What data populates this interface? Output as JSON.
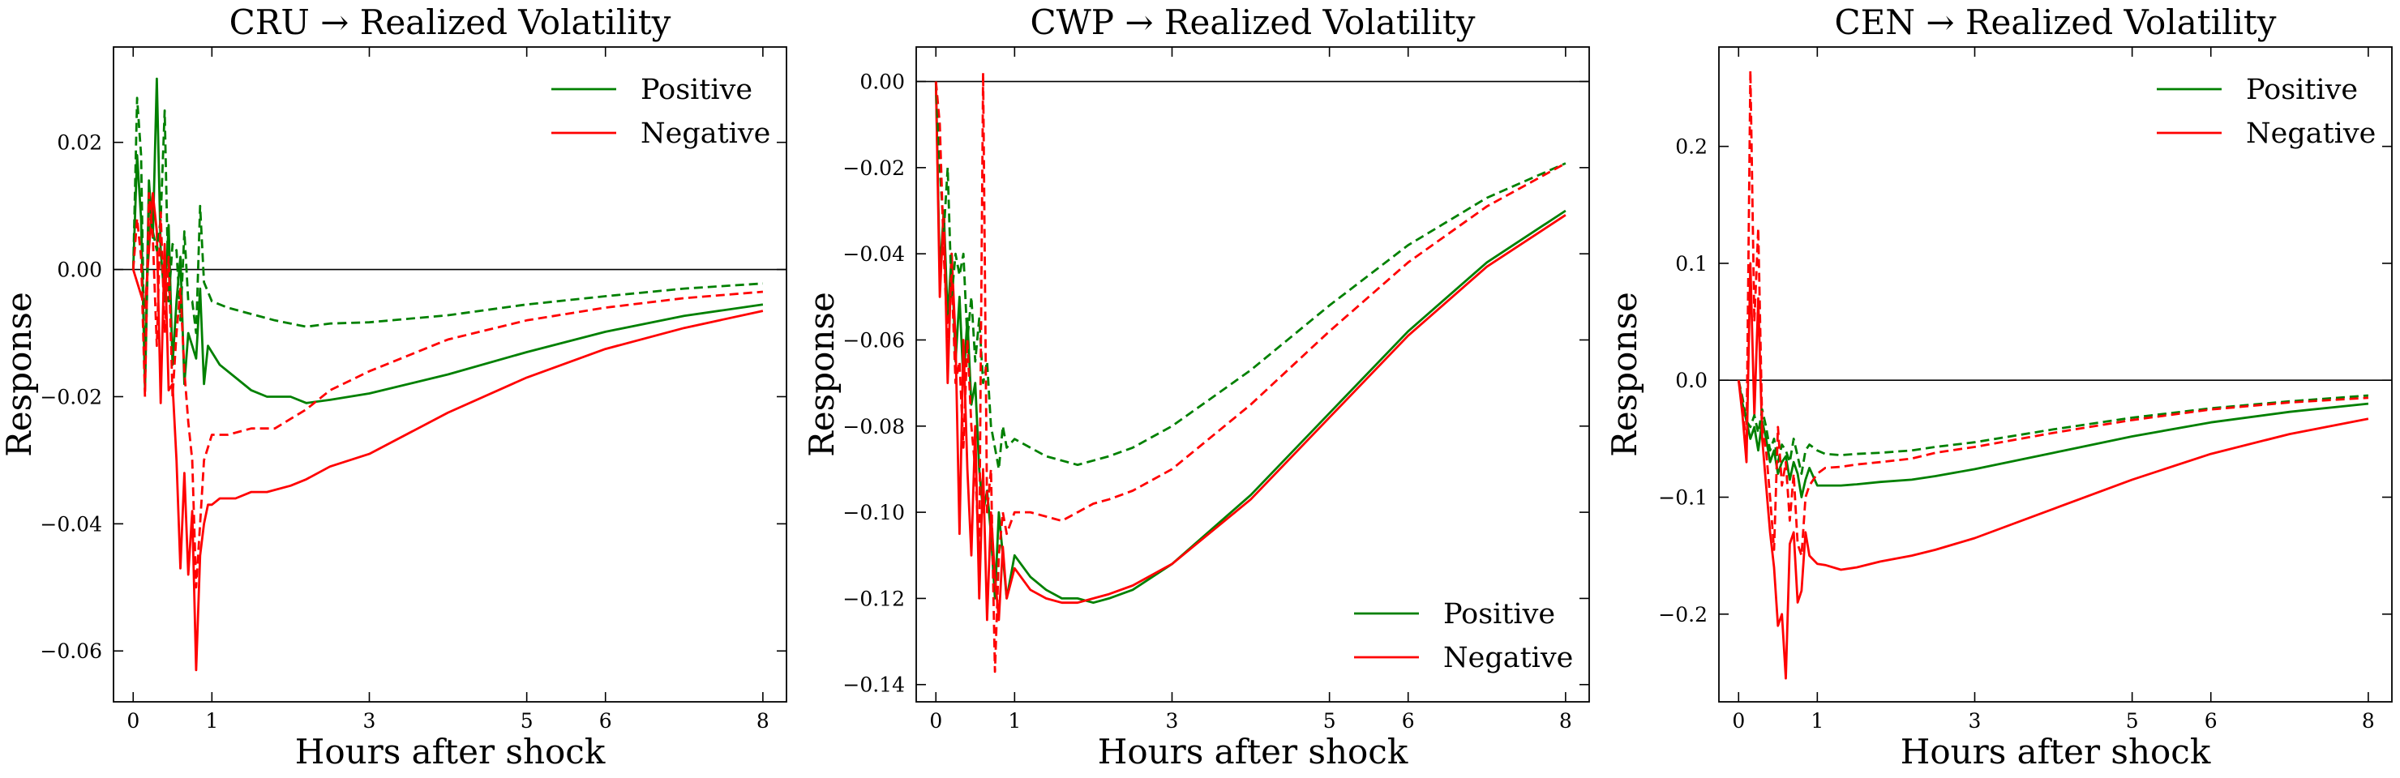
{
  "colors": {
    "positive": "#008000",
    "negative": "#ff0000",
    "zero_line": "#000000",
    "axis": "#000000"
  },
  "legend_labels": {
    "positive": "Positive",
    "negative": "Negative"
  },
  "chart_data": [
    {
      "type": "line",
      "title": "CRU → Realized Volatility",
      "xlabel": "Hours after shock",
      "ylabel": "Response",
      "xlim": [
        -0.25,
        8.3
      ],
      "ylim": [
        -0.068,
        0.035
      ],
      "xticks": [
        0,
        1,
        3,
        5,
        6,
        8
      ],
      "yticks": [
        -0.06,
        -0.04,
        -0.02,
        0.0,
        0.02
      ],
      "ytick_labels": [
        "−0.06",
        "−0.04",
        "−0.02",
        "0.00",
        "0.02"
      ],
      "legend_position": "upper right",
      "series": [
        {
          "name": "Positive",
          "style": "solid",
          "x": [
            0,
            0.05,
            0.1,
            0.15,
            0.2,
            0.25,
            0.3,
            0.35,
            0.4,
            0.45,
            0.5,
            0.55,
            0.6,
            0.65,
            0.7,
            0.75,
            0.8,
            0.85,
            0.9,
            0.95,
            1.0,
            1.1,
            1.3,
            1.5,
            1.7,
            2.0,
            2.2,
            2.5,
            3.0,
            4.0,
            5.0,
            6.0,
            7.0,
            8.0
          ],
          "y": [
            0.0,
            0.018,
            0.008,
            -0.018,
            0.014,
            0.005,
            0.03,
            0.003,
            -0.005,
            0.007,
            -0.015,
            -0.005,
            0.002,
            -0.018,
            -0.01,
            -0.012,
            -0.014,
            -0.003,
            -0.018,
            -0.012,
            -0.013,
            -0.015,
            -0.017,
            -0.019,
            -0.02,
            -0.02,
            -0.021,
            -0.0205,
            -0.0195,
            -0.0165,
            -0.013,
            -0.0098,
            -0.0073,
            -0.0055
          ]
        },
        {
          "name": "Negative",
          "style": "solid",
          "x": [
            0,
            0.1,
            0.15,
            0.2,
            0.25,
            0.3,
            0.35,
            0.4,
            0.45,
            0.5,
            0.55,
            0.6,
            0.65,
            0.7,
            0.75,
            0.8,
            0.85,
            0.9,
            0.95,
            1.0,
            1.1,
            1.3,
            1.5,
            1.7,
            2.0,
            2.2,
            2.5,
            3.0,
            4.0,
            5.0,
            6.0,
            7.0,
            8.0
          ],
          "y": [
            0.0,
            -0.004,
            -0.006,
            0.003,
            0.012,
            0.006,
            -0.021,
            0.004,
            -0.019,
            -0.018,
            -0.03,
            -0.047,
            -0.032,
            -0.048,
            -0.038,
            -0.063,
            -0.045,
            -0.04,
            -0.037,
            -0.037,
            -0.036,
            -0.036,
            -0.035,
            -0.035,
            -0.034,
            -0.033,
            -0.031,
            -0.029,
            -0.0225,
            -0.017,
            -0.0125,
            -0.0092,
            -0.0065
          ]
        },
        {
          "name": "Positive",
          "style": "dashed",
          "x": [
            0,
            0.05,
            0.1,
            0.15,
            0.2,
            0.25,
            0.3,
            0.35,
            0.4,
            0.45,
            0.5,
            0.55,
            0.6,
            0.65,
            0.7,
            0.75,
            0.8,
            0.85,
            0.9,
            1.0,
            1.2,
            1.5,
            1.8,
            2.2,
            2.5,
            3.0,
            4.0,
            5.0,
            6.0,
            7.0,
            8.0
          ],
          "y": [
            0.0,
            0.027,
            0.018,
            -0.019,
            0.01,
            0.006,
            0.003,
            0.008,
            0.025,
            -0.005,
            0.004,
            0.003,
            -0.008,
            0.006,
            -0.005,
            -0.005,
            -0.01,
            0.01,
            -0.002,
            -0.005,
            -0.006,
            -0.007,
            -0.008,
            -0.009,
            -0.0085,
            -0.0083,
            -0.0072,
            -0.0055,
            -0.0042,
            -0.003,
            -0.0022
          ]
        },
        {
          "name": "Negative",
          "style": "dashed",
          "x": [
            0,
            0.05,
            0.1,
            0.15,
            0.2,
            0.25,
            0.3,
            0.35,
            0.4,
            0.45,
            0.5,
            0.55,
            0.6,
            0.65,
            0.7,
            0.75,
            0.8,
            0.85,
            0.9,
            1.0,
            1.2,
            1.5,
            1.8,
            2.2,
            2.5,
            3.0,
            4.0,
            5.0,
            6.0,
            7.0,
            8.0
          ],
          "y": [
            0.0,
            0.008,
            0.002,
            -0.02,
            0.012,
            0.005,
            -0.012,
            0.009,
            -0.01,
            0.002,
            -0.02,
            -0.01,
            -0.003,
            -0.016,
            -0.024,
            -0.03,
            -0.05,
            -0.04,
            -0.03,
            -0.026,
            -0.026,
            -0.025,
            -0.025,
            -0.022,
            -0.019,
            -0.016,
            -0.011,
            -0.008,
            -0.006,
            -0.0045,
            -0.0035
          ]
        }
      ]
    },
    {
      "type": "line",
      "title": "CWP → Realized Volatility",
      "xlabel": "Hours after shock",
      "ylabel": "Response",
      "xlim": [
        -0.25,
        8.3
      ],
      "ylim": [
        -0.144,
        0.008
      ],
      "xticks": [
        0,
        1,
        3,
        5,
        6,
        8
      ],
      "yticks": [
        -0.14,
        -0.12,
        -0.1,
        -0.08,
        -0.06,
        -0.04,
        -0.02,
        0.0
      ],
      "ytick_labels": [
        "−0.14",
        "−0.12",
        "−0.10",
        "−0.08",
        "−0.06",
        "−0.04",
        "−0.02",
        "0.00"
      ],
      "legend_position": "lower right",
      "series": [
        {
          "name": "Positive",
          "style": "solid",
          "x": [
            0,
            0.05,
            0.1,
            0.15,
            0.2,
            0.25,
            0.3,
            0.35,
            0.4,
            0.45,
            0.5,
            0.55,
            0.6,
            0.65,
            0.7,
            0.75,
            0.8,
            0.85,
            0.9,
            1.0,
            1.2,
            1.4,
            1.6,
            1.8,
            2.0,
            2.2,
            2.5,
            3.0,
            4.0,
            5.0,
            6.0,
            7.0,
            8.0
          ],
          "y": [
            0.0,
            -0.045,
            -0.03,
            -0.055,
            -0.04,
            -0.065,
            -0.05,
            -0.07,
            -0.055,
            -0.075,
            -0.07,
            -0.09,
            -0.1,
            -0.095,
            -0.105,
            -0.12,
            -0.1,
            -0.11,
            -0.12,
            -0.11,
            -0.115,
            -0.118,
            -0.12,
            -0.12,
            -0.121,
            -0.12,
            -0.118,
            -0.112,
            -0.096,
            -0.077,
            -0.058,
            -0.042,
            -0.03
          ]
        },
        {
          "name": "Negative",
          "style": "solid",
          "x": [
            0,
            0.05,
            0.1,
            0.15,
            0.2,
            0.25,
            0.3,
            0.35,
            0.4,
            0.45,
            0.5,
            0.55,
            0.6,
            0.65,
            0.7,
            0.75,
            0.8,
            0.85,
            0.9,
            1.0,
            1.2,
            1.4,
            1.6,
            1.8,
            2.0,
            2.2,
            2.5,
            3.0,
            4.0,
            5.0,
            6.0,
            7.0,
            8.0
          ],
          "y": [
            0.0,
            -0.05,
            -0.03,
            -0.07,
            -0.04,
            -0.06,
            -0.105,
            -0.06,
            -0.09,
            -0.11,
            -0.08,
            -0.12,
            -0.09,
            -0.125,
            -0.1,
            -0.115,
            -0.125,
            -0.108,
            -0.12,
            -0.113,
            -0.118,
            -0.12,
            -0.121,
            -0.121,
            -0.12,
            -0.119,
            -0.117,
            -0.112,
            -0.097,
            -0.078,
            -0.059,
            -0.043,
            -0.031
          ]
        },
        {
          "name": "Positive",
          "style": "dashed",
          "x": [
            0,
            0.05,
            0.1,
            0.15,
            0.2,
            0.25,
            0.3,
            0.35,
            0.4,
            0.45,
            0.5,
            0.55,
            0.6,
            0.65,
            0.7,
            0.75,
            0.8,
            0.85,
            0.9,
            1.0,
            1.2,
            1.4,
            1.6,
            1.8,
            2.0,
            2.2,
            2.5,
            3.0,
            4.0,
            5.0,
            6.0,
            7.0,
            8.0
          ],
          "y": [
            0.0,
            -0.02,
            -0.035,
            -0.02,
            -0.05,
            -0.04,
            -0.045,
            -0.04,
            -0.06,
            -0.05,
            -0.065,
            -0.055,
            -0.07,
            -0.065,
            -0.08,
            -0.085,
            -0.09,
            -0.08,
            -0.085,
            -0.083,
            -0.085,
            -0.087,
            -0.088,
            -0.089,
            -0.088,
            -0.087,
            -0.085,
            -0.08,
            -0.067,
            -0.052,
            -0.038,
            -0.027,
            -0.019
          ]
        },
        {
          "name": "Negative",
          "style": "dashed",
          "x": [
            0,
            0.05,
            0.1,
            0.15,
            0.2,
            0.25,
            0.3,
            0.35,
            0.4,
            0.45,
            0.5,
            0.55,
            0.6,
            0.65,
            0.7,
            0.75,
            0.8,
            0.85,
            0.9,
            1.0,
            1.2,
            1.4,
            1.6,
            1.8,
            2.0,
            2.2,
            2.5,
            3.0,
            4.0,
            5.0,
            6.0,
            7.0,
            8.0
          ],
          "y": [
            0.0,
            -0.01,
            -0.04,
            -0.06,
            -0.045,
            -0.07,
            -0.065,
            -0.085,
            -0.06,
            -0.08,
            -0.09,
            -0.11,
            0.002,
            -0.1,
            -0.09,
            -0.137,
            -0.11,
            -0.1,
            -0.105,
            -0.1,
            -0.1,
            -0.101,
            -0.102,
            -0.1,
            -0.098,
            -0.097,
            -0.095,
            -0.09,
            -0.075,
            -0.058,
            -0.042,
            -0.029,
            -0.019
          ]
        }
      ]
    },
    {
      "type": "line",
      "title": "CEN → Realized Volatility",
      "xlabel": "Hours after shock",
      "ylabel": "Response",
      "xlim": [
        -0.25,
        8.3
      ],
      "ylim": [
        -0.275,
        0.285
      ],
      "xticks": [
        0,
        1,
        3,
        5,
        6,
        8
      ],
      "yticks": [
        -0.2,
        -0.1,
        0.0,
        0.1,
        0.2
      ],
      "ytick_labels": [
        "−0.2",
        "−0.1",
        "0.0",
        "0.1",
        "0.2"
      ],
      "legend_position": "upper right",
      "series": [
        {
          "name": "Positive",
          "style": "solid",
          "x": [
            0,
            0.05,
            0.1,
            0.15,
            0.2,
            0.25,
            0.3,
            0.35,
            0.4,
            0.45,
            0.5,
            0.55,
            0.6,
            0.65,
            0.7,
            0.75,
            0.8,
            0.85,
            0.9,
            1.0,
            1.1,
            1.3,
            1.5,
            1.8,
            2.2,
            2.5,
            3.0,
            4.0,
            5.0,
            6.0,
            7.0,
            8.0
          ],
          "y": [
            0.0,
            -0.02,
            -0.035,
            -0.05,
            -0.04,
            -0.06,
            -0.035,
            -0.05,
            -0.07,
            -0.06,
            -0.08,
            -0.07,
            -0.065,
            -0.085,
            -0.07,
            -0.08,
            -0.1,
            -0.085,
            -0.075,
            -0.09,
            -0.09,
            -0.09,
            -0.089,
            -0.087,
            -0.085,
            -0.082,
            -0.076,
            -0.062,
            -0.048,
            -0.036,
            -0.027,
            -0.02
          ]
        },
        {
          "name": "Negative",
          "style": "solid",
          "x": [
            0,
            0.05,
            0.1,
            0.15,
            0.2,
            0.25,
            0.3,
            0.35,
            0.4,
            0.45,
            0.5,
            0.55,
            0.6,
            0.65,
            0.7,
            0.75,
            0.8,
            0.85,
            0.9,
            1.0,
            1.1,
            1.3,
            1.5,
            1.8,
            2.2,
            2.5,
            3.0,
            4.0,
            5.0,
            6.0,
            7.0,
            8.0
          ],
          "y": [
            0.0,
            -0.03,
            -0.07,
            0.1,
            -0.03,
            0.07,
            -0.05,
            -0.09,
            -0.13,
            -0.16,
            -0.21,
            -0.2,
            -0.255,
            -0.14,
            -0.13,
            -0.19,
            -0.18,
            -0.13,
            -0.15,
            -0.157,
            -0.158,
            -0.162,
            -0.16,
            -0.155,
            -0.15,
            -0.145,
            -0.135,
            -0.11,
            -0.085,
            -0.063,
            -0.046,
            -0.033
          ]
        },
        {
          "name": "Positive",
          "style": "dashed",
          "x": [
            0,
            0.05,
            0.1,
            0.15,
            0.2,
            0.25,
            0.3,
            0.35,
            0.4,
            0.45,
            0.5,
            0.55,
            0.6,
            0.65,
            0.7,
            0.75,
            0.8,
            0.85,
            0.9,
            1.0,
            1.1,
            1.3,
            1.5,
            1.8,
            2.2,
            2.5,
            3.0,
            4.0,
            5.0,
            6.0,
            7.0,
            8.0
          ],
          "y": [
            0.0,
            -0.015,
            -0.035,
            -0.04,
            -0.03,
            -0.045,
            -0.025,
            -0.04,
            -0.06,
            -0.05,
            -0.07,
            -0.055,
            -0.06,
            -0.07,
            -0.05,
            -0.065,
            -0.08,
            -0.06,
            -0.055,
            -0.06,
            -0.063,
            -0.064,
            -0.063,
            -0.062,
            -0.06,
            -0.057,
            -0.053,
            -0.042,
            -0.032,
            -0.024,
            -0.018,
            -0.013
          ]
        },
        {
          "name": "Negative",
          "style": "dashed",
          "x": [
            0,
            0.05,
            0.1,
            0.15,
            0.2,
            0.25,
            0.3,
            0.35,
            0.4,
            0.45,
            0.5,
            0.55,
            0.6,
            0.65,
            0.7,
            0.75,
            0.8,
            0.85,
            0.9,
            1.0,
            1.1,
            1.3,
            1.5,
            1.8,
            2.2,
            2.5,
            3.0,
            4.0,
            5.0,
            6.0,
            7.0,
            8.0
          ],
          "y": [
            0.0,
            -0.02,
            -0.06,
            0.265,
            0.05,
            0.13,
            -0.04,
            -0.06,
            -0.1,
            -0.145,
            -0.04,
            -0.09,
            -0.07,
            -0.12,
            -0.08,
            -0.14,
            -0.15,
            -0.1,
            -0.09,
            -0.08,
            -0.075,
            -0.074,
            -0.072,
            -0.07,
            -0.067,
            -0.062,
            -0.057,
            -0.045,
            -0.034,
            -0.025,
            -0.019,
            -0.015
          ]
        }
      ]
    }
  ]
}
